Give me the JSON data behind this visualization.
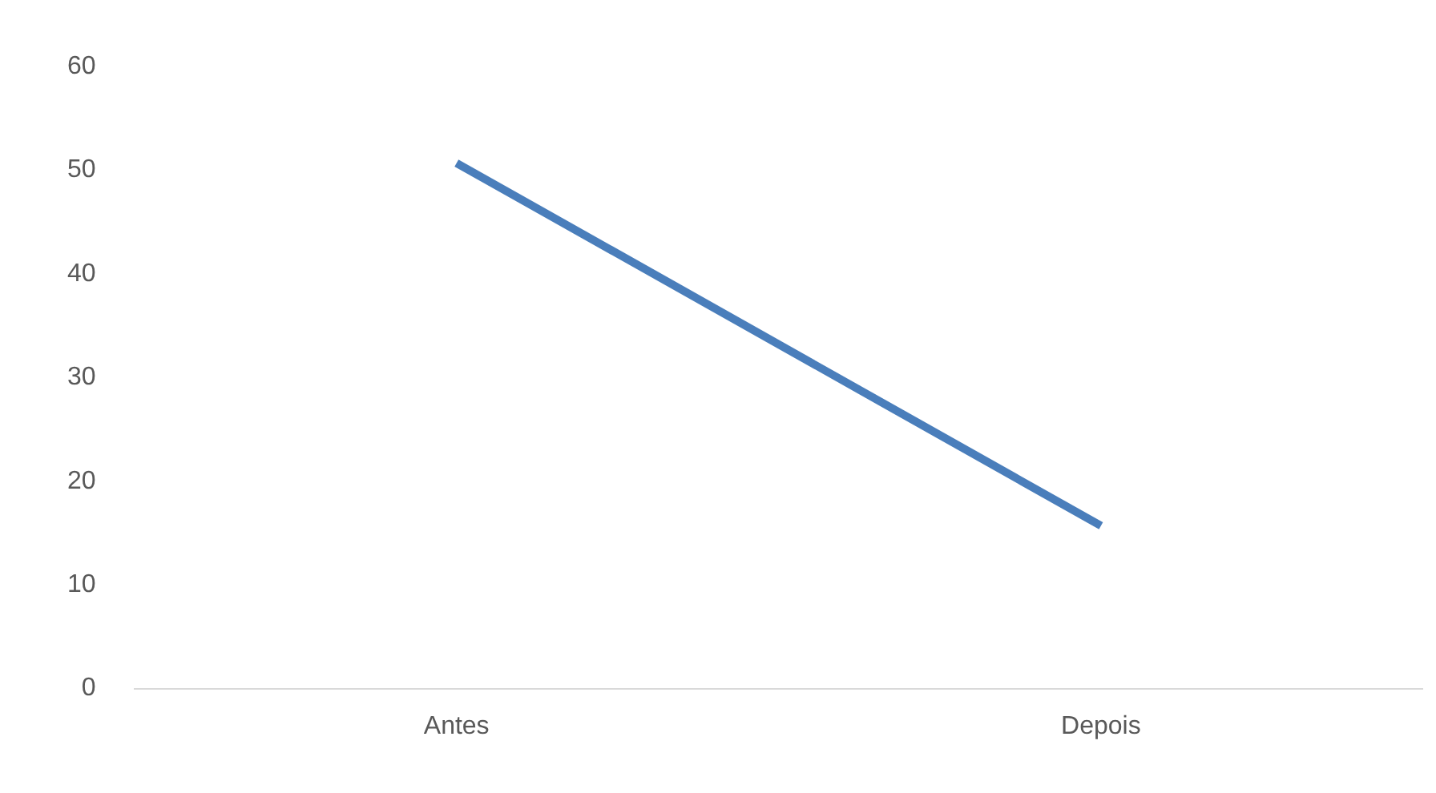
{
  "chart_data": {
    "type": "line",
    "categories": [
      "Antes",
      "Depois"
    ],
    "series": [
      {
        "color": "#4a7ebb",
        "values": [
          50.7,
          15.7
        ]
      }
    ],
    "ylim": [
      0,
      60
    ],
    "yticks": [
      0,
      10,
      20,
      30,
      40,
      50,
      60
    ],
    "legend": false,
    "marker": "none",
    "line_style": "solid"
  }
}
